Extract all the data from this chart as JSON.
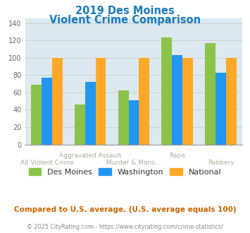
{
  "title_line1": "2019 Des Moines",
  "title_line2": "Violent Crime Comparison",
  "title_color": "#1a7abf",
  "categories": [
    "All Violent Crime",
    "Aggravated Assault",
    "Murder & Mans...",
    "Rape",
    "Robbery"
  ],
  "series": {
    "Des Moines": [
      69,
      46,
      62,
      123,
      117
    ],
    "Washington": [
      77,
      72,
      51,
      103,
      83
    ],
    "National": [
      100,
      100,
      100,
      100,
      100
    ]
  },
  "colors": {
    "Des Moines": "#8bc34a",
    "Washington": "#2196f3",
    "National": "#ffa726"
  },
  "ylim": [
    0,
    145
  ],
  "yticks": [
    0,
    20,
    40,
    60,
    80,
    100,
    120,
    140
  ],
  "grid_color": "#cccccc",
  "bg_color": "#dce9f0",
  "footnote1": "Compared to U.S. average. (U.S. average equals 100)",
  "footnote1_color": "#cc6600",
  "footnote2": "© 2025 CityRating.com - https://www.cityrating.com/crime-statistics/",
  "footnote2_color": "#888888",
  "xlabel_color": "#b0a898",
  "legend_label_color": "#333333"
}
